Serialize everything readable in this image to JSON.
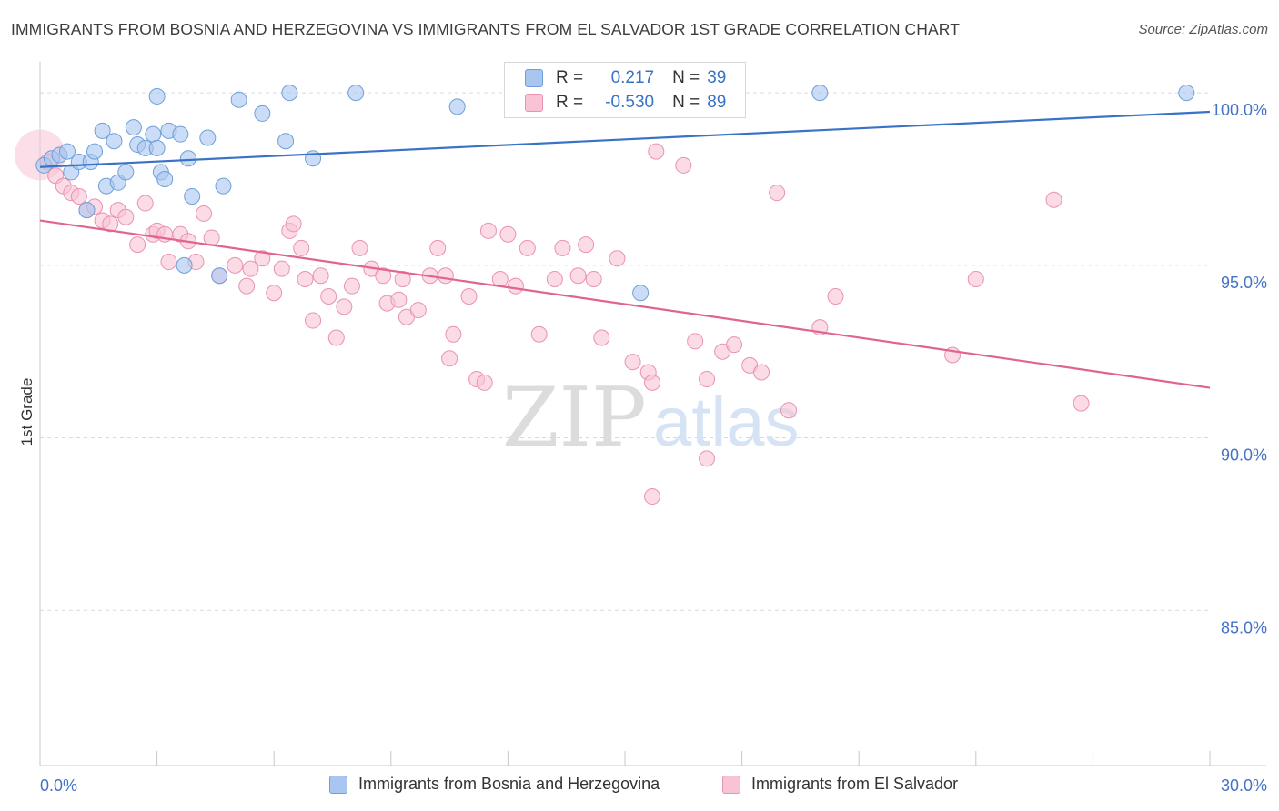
{
  "title": "IMMIGRANTS FROM BOSNIA AND HERZEGOVINA VS IMMIGRANTS FROM EL SALVADOR 1ST GRADE CORRELATION CHART",
  "source": "Source: ZipAtlas.com",
  "watermark": {
    "zip": "ZIP",
    "atlas": "atlas"
  },
  "stats": {
    "rows": [
      {
        "r_label": "R =",
        "r_value": "0.217",
        "n_label": "N =",
        "n_value": "39",
        "color": "#a8c6f0",
        "border": "#6f9fd8"
      },
      {
        "r_label": "R =",
        "r_value": "-0.530",
        "n_label": "N =",
        "n_value": "89",
        "color": "#f8c3d4",
        "border": "#e993b0"
      }
    ]
  },
  "legend": {
    "series1": "Immigrants from Bosnia and Herzegovina",
    "series2": "Immigrants from El Salvador"
  },
  "colors": {
    "blue_fill": "#a8c6f0",
    "blue_stroke": "#6f9fd8",
    "blue_line": "#3a72c6",
    "pink_fill": "#f8c3d4",
    "pink_stroke": "#e993b0",
    "pink_line": "#e0648f",
    "axis_text": "#4472c4",
    "grid": "#d9d9d9"
  },
  "chart_data": {
    "type": "scatter",
    "title": "IMMIGRANTS FROM BOSNIA AND HERZEGOVINA VS IMMIGRANTS FROM EL SALVADOR 1ST GRADE CORRELATION CHART",
    "xlabel": "",
    "ylabel": "1st Grade",
    "xlim": [
      0,
      30
    ],
    "ylim": [
      80.5,
      100.9
    ],
    "x_tick_labels": [
      "0.0%",
      "30.0%"
    ],
    "y_ticks": [
      85,
      90,
      95,
      100
    ],
    "y_tick_labels": [
      "85.0%",
      "90.0%",
      "95.0%",
      "100.0%"
    ],
    "grid": true,
    "series": [
      {
        "name": "Immigrants from Bosnia and Herzegovina",
        "color": "#a8c6f0",
        "trend": {
          "x": [
            0,
            30
          ],
          "y": [
            97.85,
            99.45
          ]
        },
        "points": [
          [
            0.1,
            97.9
          ],
          [
            0.3,
            98.1
          ],
          [
            0.5,
            98.2
          ],
          [
            0.7,
            98.3
          ],
          [
            0.8,
            97.7
          ],
          [
            1.0,
            98.0
          ],
          [
            1.2,
            96.6
          ],
          [
            1.3,
            98.0
          ],
          [
            1.4,
            98.3
          ],
          [
            1.6,
            98.9
          ],
          [
            1.7,
            97.3
          ],
          [
            1.9,
            98.6
          ],
          [
            2.0,
            97.4
          ],
          [
            2.2,
            97.7
          ],
          [
            2.4,
            99.0
          ],
          [
            2.5,
            98.5
          ],
          [
            2.7,
            98.4
          ],
          [
            2.9,
            98.8
          ],
          [
            3.0,
            98.4
          ],
          [
            3.0,
            99.9
          ],
          [
            3.1,
            97.7
          ],
          [
            3.2,
            97.5
          ],
          [
            3.3,
            98.9
          ],
          [
            3.6,
            98.8
          ],
          [
            3.7,
            95.0
          ],
          [
            3.8,
            98.1
          ],
          [
            3.9,
            97.0
          ],
          [
            4.3,
            98.7
          ],
          [
            4.6,
            94.7
          ],
          [
            4.7,
            97.3
          ],
          [
            5.1,
            99.8
          ],
          [
            5.7,
            99.4
          ],
          [
            6.3,
            98.6
          ],
          [
            6.4,
            100.0
          ],
          [
            7.0,
            98.1
          ],
          [
            8.1,
            100.0
          ],
          [
            10.7,
            99.6
          ],
          [
            15.4,
            94.2
          ],
          [
            20.0,
            100.0
          ],
          [
            29.4,
            100.0
          ]
        ]
      },
      {
        "name": "Immigrants from El Salvador",
        "color": "#f8c3d4",
        "trend": {
          "x": [
            0,
            30
          ],
          "y": [
            96.3,
            91.45
          ]
        },
        "points": [
          [
            0.2,
            98.0
          ],
          [
            0.4,
            97.6
          ],
          [
            0.6,
            97.3
          ],
          [
            0.8,
            97.1
          ],
          [
            1.0,
            97.0
          ],
          [
            1.2,
            96.6
          ],
          [
            1.4,
            96.7
          ],
          [
            1.6,
            96.3
          ],
          [
            1.8,
            96.2
          ],
          [
            2.0,
            96.6
          ],
          [
            2.2,
            96.4
          ],
          [
            2.5,
            95.6
          ],
          [
            2.7,
            96.8
          ],
          [
            2.9,
            95.9
          ],
          [
            3.0,
            96.0
          ],
          [
            3.2,
            95.9
          ],
          [
            3.3,
            95.1
          ],
          [
            3.6,
            95.9
          ],
          [
            3.8,
            95.7
          ],
          [
            4.0,
            95.1
          ],
          [
            4.2,
            96.5
          ],
          [
            4.4,
            95.8
          ],
          [
            4.6,
            94.7
          ],
          [
            5.0,
            95.0
          ],
          [
            5.3,
            94.4
          ],
          [
            5.4,
            94.9
          ],
          [
            5.7,
            95.2
          ],
          [
            6.0,
            94.2
          ],
          [
            6.2,
            94.9
          ],
          [
            6.4,
            96.0
          ],
          [
            6.5,
            96.2
          ],
          [
            6.7,
            95.5
          ],
          [
            6.8,
            94.6
          ],
          [
            7.0,
            93.4
          ],
          [
            7.2,
            94.7
          ],
          [
            7.4,
            94.1
          ],
          [
            7.6,
            92.9
          ],
          [
            7.8,
            93.8
          ],
          [
            8.0,
            94.4
          ],
          [
            8.2,
            95.5
          ],
          [
            8.5,
            94.9
          ],
          [
            8.8,
            94.7
          ],
          [
            8.9,
            93.9
          ],
          [
            9.2,
            94.0
          ],
          [
            9.3,
            94.6
          ],
          [
            9.4,
            93.5
          ],
          [
            9.7,
            93.7
          ],
          [
            10.0,
            94.7
          ],
          [
            10.2,
            95.5
          ],
          [
            10.4,
            94.7
          ],
          [
            10.5,
            92.3
          ],
          [
            10.6,
            93.0
          ],
          [
            11.0,
            94.1
          ],
          [
            11.2,
            91.7
          ],
          [
            11.5,
            96.0
          ],
          [
            11.8,
            94.6
          ],
          [
            12.0,
            95.9
          ],
          [
            12.2,
            94.4
          ],
          [
            12.5,
            95.5
          ],
          [
            12.8,
            93.0
          ],
          [
            13.2,
            94.6
          ],
          [
            13.4,
            95.5
          ],
          [
            13.8,
            94.7
          ],
          [
            14.0,
            95.6
          ],
          [
            14.2,
            94.6
          ],
          [
            14.4,
            92.9
          ],
          [
            14.8,
            95.2
          ],
          [
            15.2,
            92.2
          ],
          [
            15.6,
            91.9
          ],
          [
            15.7,
            91.6
          ],
          [
            15.8,
            98.3
          ],
          [
            16.5,
            97.9
          ],
          [
            16.8,
            92.8
          ],
          [
            17.1,
            91.7
          ],
          [
            17.5,
            92.5
          ],
          [
            17.8,
            92.7
          ],
          [
            18.2,
            92.1
          ],
          [
            18.5,
            91.9
          ],
          [
            18.9,
            97.1
          ],
          [
            19.2,
            90.8
          ],
          [
            20.0,
            93.2
          ],
          [
            20.4,
            94.1
          ],
          [
            23.4,
            92.4
          ],
          [
            24.0,
            94.6
          ],
          [
            26.0,
            96.9
          ],
          [
            26.7,
            91.0
          ],
          [
            17.1,
            89.4
          ],
          [
            15.7,
            88.3
          ],
          [
            11.4,
            91.6
          ]
        ]
      }
    ]
  }
}
